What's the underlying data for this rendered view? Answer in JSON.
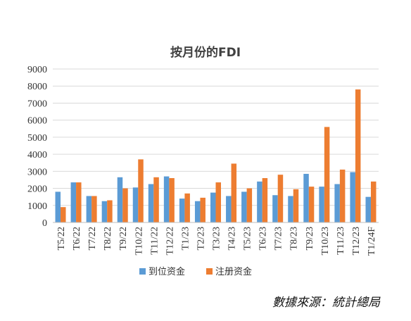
{
  "chart_data": {
    "type": "bar",
    "title": "按月份的FDI",
    "xlabel": "",
    "ylabel": "",
    "ylim": [
      0,
      9000
    ],
    "yticks": [
      0,
      1000,
      2000,
      3000,
      4000,
      5000,
      6000,
      7000,
      8000,
      9000
    ],
    "grid": true,
    "legend_position": "bottom",
    "categories": [
      "T5/22",
      "T6/22",
      "T7/22",
      "T8/22",
      "T9/22",
      "T10/22",
      "T11/22",
      "T12/22",
      "T1/23",
      "T2/23",
      "T3/23",
      "T4/23",
      "T5/23",
      "T6/23",
      "T7/23",
      "T8/23",
      "T9/23",
      "T10/23",
      "T11/23",
      "T12/23",
      "T1/24F"
    ],
    "series": [
      {
        "name": "到位资金",
        "color": "#5B9BD5",
        "values": [
          1800,
          2350,
          1550,
          1250,
          2650,
          2050,
          2250,
          2700,
          1400,
          1250,
          1750,
          1550,
          1800,
          2400,
          1600,
          1550,
          2850,
          2100,
          2250,
          2950,
          1500
        ]
      },
      {
        "name": "注册资金",
        "color": "#ED7D31",
        "values": [
          900,
          2350,
          1550,
          1300,
          2000,
          3700,
          2650,
          2600,
          1700,
          1450,
          2350,
          3450,
          2000,
          2600,
          2800,
          1950,
          2100,
          5600,
          3100,
          7800,
          2400
        ]
      }
    ]
  },
  "source_text": "數據來源：統計總局"
}
